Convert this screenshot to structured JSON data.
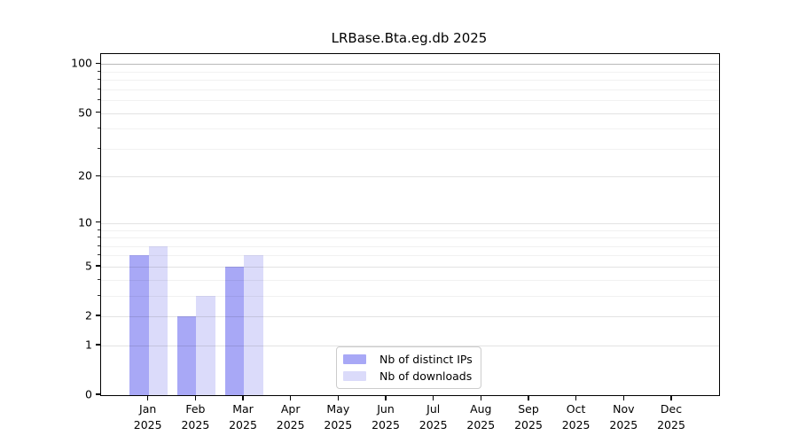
{
  "title": "LRBase.Bta.eg.db 2025",
  "chart_data": {
    "type": "bar",
    "title": "LRBase.Bta.eg.db 2025",
    "categories": [
      "Jan",
      "Feb",
      "Mar",
      "Apr",
      "May",
      "Jun",
      "Jul",
      "Aug",
      "Sep",
      "Oct",
      "Nov",
      "Dec"
    ],
    "year": "2025",
    "series": [
      {
        "name": "Nb of distinct IPs",
        "color": "#a8a8f6",
        "values": [
          6,
          2,
          5,
          0,
          0,
          0,
          0,
          0,
          0,
          0,
          0,
          0
        ]
      },
      {
        "name": "Nb of downloads",
        "color": "#dbdbfa",
        "values": [
          7,
          3,
          6,
          0,
          0,
          0,
          0,
          0,
          0,
          0,
          0,
          0
        ]
      }
    ],
    "y_axis": {
      "scale": "log1p",
      "ticks": [
        0,
        1,
        2,
        5,
        10,
        20,
        50,
        100
      ],
      "minor_ticks": [
        3,
        4,
        6,
        7,
        8,
        9,
        30,
        40,
        60,
        70,
        80,
        90
      ],
      "ylim": [
        0,
        115
      ]
    },
    "grid": true,
    "legend_position": "inside-bottom-center"
  }
}
